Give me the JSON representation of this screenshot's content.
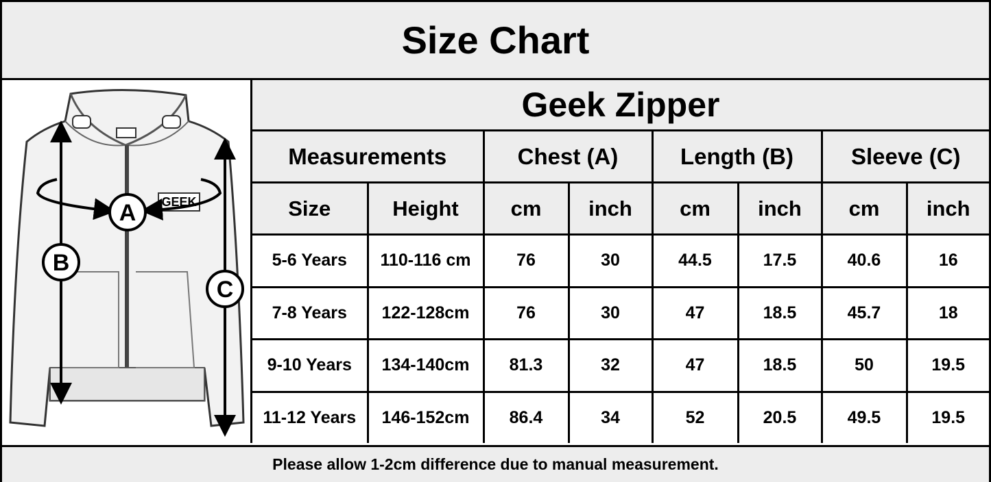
{
  "header": {
    "title": "Size Chart"
  },
  "diagram": {
    "labels": [
      "A",
      "B",
      "C"
    ],
    "print": "GEEK"
  },
  "table": {
    "product": "Geek Zipper",
    "groups": [
      "Measurements",
      "Chest (A)",
      "Length (B)",
      "Sleeve (C)"
    ],
    "columns": [
      "Size",
      "Height",
      "cm",
      "inch",
      "cm",
      "inch",
      "cm",
      "inch"
    ],
    "rows": [
      [
        "5-6 Years",
        "110-116 cm",
        "76",
        "30",
        "44.5",
        "17.5",
        "40.6",
        "16"
      ],
      [
        "7-8 Years",
        "122-128cm",
        "76",
        "30",
        "47",
        "18.5",
        "45.7",
        "18"
      ],
      [
        "9-10 Years",
        "134-140cm",
        "81.3",
        "32",
        "47",
        "18.5",
        "50",
        "19.5"
      ],
      [
        "11-12 Years",
        "146-152cm",
        "86.4",
        "34",
        "52",
        "20.5",
        "49.5",
        "19.5"
      ]
    ]
  },
  "footer": {
    "note": "Please allow 1-2cm difference due to manual measurement."
  }
}
